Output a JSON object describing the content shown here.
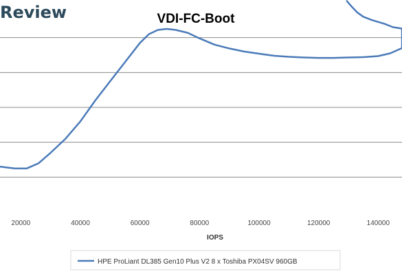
{
  "watermark": "Review",
  "colors": {
    "series": "#4a7ab8",
    "grid": "#8c8c8c",
    "legend_border": "#d9d9d9"
  },
  "chart_data": {
    "type": "line",
    "title": "VDI-FC-Boot",
    "xlabel": "IOPS",
    "ylabel": "",
    "xlim": [
      13000,
      148000
    ],
    "ylim": [
      0,
      6
    ],
    "x_ticks": [
      20000,
      40000,
      60000,
      80000,
      100000,
      120000,
      140000
    ],
    "x_tick_labels": [
      "20000",
      "40000",
      "60000",
      "80000",
      "100000",
      "120000",
      "140000"
    ],
    "y_gridlines": [
      1,
      2,
      3,
      4,
      5
    ],
    "grid": true,
    "legend_position": "bottom",
    "series": [
      {
        "name": "HPE ProLiant DL385 Gen10 Plus V2 8 x Toshiba PX04SV 960GB",
        "x": [
          13000,
          18000,
          22000,
          26000,
          30000,
          35000,
          40000,
          45000,
          50000,
          55000,
          60000,
          63000,
          66000,
          69000,
          72000,
          76000,
          80000,
          85000,
          90000,
          95000,
          100000,
          105000,
          110000,
          115000,
          120000,
          125000,
          130000,
          135000,
          140000,
          144000,
          148000,
          148000,
          145000,
          142000,
          138000,
          135000,
          133000,
          131000,
          129500
        ],
        "y": [
          1.3,
          1.25,
          1.25,
          1.4,
          1.7,
          2.1,
          2.6,
          3.2,
          3.75,
          4.3,
          4.85,
          5.1,
          5.22,
          5.25,
          5.22,
          5.14,
          4.98,
          4.8,
          4.69,
          4.6,
          4.54,
          4.48,
          4.45,
          4.43,
          4.42,
          4.42,
          4.43,
          4.44,
          4.47,
          4.55,
          4.7,
          5.26,
          5.3,
          5.4,
          5.5,
          5.6,
          5.72,
          5.9,
          6.05
        ]
      }
    ]
  }
}
